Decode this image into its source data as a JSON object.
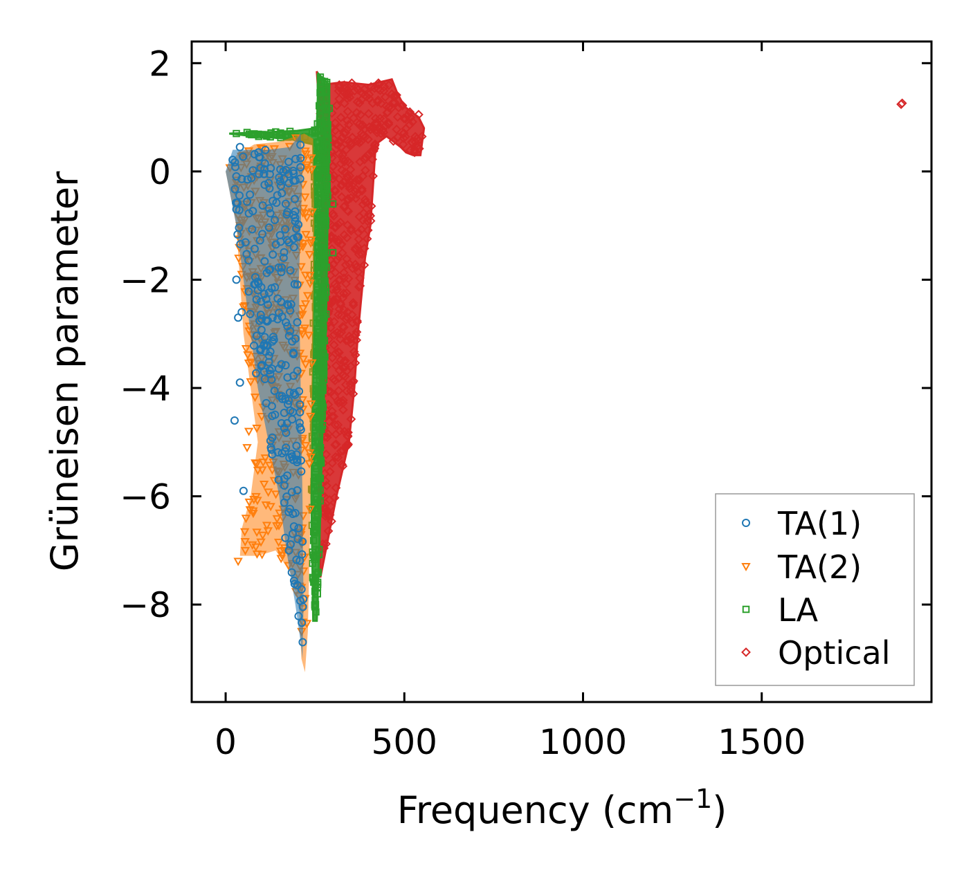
{
  "chart_data": {
    "type": "scatter",
    "title": "",
    "xlabel": "Frequency (cm",
    "xlabel_sup": "−1",
    "xlabel_end": ")",
    "ylabel": "Grüneisen parameter",
    "xlim": [
      -95,
      1975
    ],
    "ylim": [
      -9.8,
      2.4
    ],
    "xticks": [
      0,
      500,
      1000,
      1500
    ],
    "xtick_labels": [
      "0",
      "500",
      "1000",
      "1500"
    ],
    "yticks": [
      -8,
      -6,
      -4,
      -2,
      0,
      2
    ],
    "ytick_labels": [
      "−8",
      "−6",
      "−4",
      "−2",
      "0",
      "2"
    ],
    "grid": false,
    "legend_position": "bottom-right",
    "series": [
      {
        "name": "TA(1)",
        "marker": "circle",
        "color": "#1f77b4",
        "envelope": [
          [
            0,
            0.0
          ],
          [
            20,
            0.4
          ],
          [
            60,
            0.4
          ],
          [
            120,
            0.4
          ],
          [
            180,
            0.45
          ],
          [
            210,
            0.7
          ],
          [
            215,
            0.0
          ],
          [
            205,
            -2.0
          ],
          [
            210,
            -4.0
          ],
          [
            215,
            -6.0
          ],
          [
            218,
            -8.0
          ],
          [
            215,
            -9.0
          ],
          [
            210,
            -8.7
          ],
          [
            195,
            -8.0
          ],
          [
            170,
            -7.0
          ],
          [
            150,
            -6.0
          ],
          [
            120,
            -5.0
          ],
          [
            90,
            -4.0
          ],
          [
            70,
            -3.0
          ],
          [
            50,
            -2.0
          ],
          [
            30,
            -1.0
          ]
        ],
        "outliers": [
          [
            30,
            -2.0
          ],
          [
            35,
            -2.7
          ],
          [
            25,
            -4.6
          ],
          [
            50,
            -5.9
          ],
          [
            40,
            -3.9
          ],
          [
            45,
            -2.6
          ],
          [
            30,
            -0.7
          ],
          [
            40,
            0.45
          ]
        ]
      },
      {
        "name": "TA(2)",
        "marker": "triangle-down",
        "color": "#ff7f0e",
        "envelope": [
          [
            0,
            0.0
          ],
          [
            30,
            0.3
          ],
          [
            80,
            0.5
          ],
          [
            150,
            0.55
          ],
          [
            220,
            0.7
          ],
          [
            245,
            0.6
          ],
          [
            248,
            -1.0
          ],
          [
            245,
            -3.0
          ],
          [
            240,
            -5.0
          ],
          [
            235,
            -7.0
          ],
          [
            230,
            -8.5
          ],
          [
            222,
            -9.25
          ],
          [
            212,
            -9.0
          ],
          [
            205,
            -8.0
          ],
          [
            180,
            -7.4
          ],
          [
            140,
            -7.0
          ],
          [
            90,
            -7.1
          ],
          [
            40,
            -7.1
          ],
          [
            45,
            -6.6
          ],
          [
            70,
            -6.0
          ],
          [
            90,
            -5.0
          ],
          [
            70,
            -4.0
          ],
          [
            50,
            -3.0
          ],
          [
            30,
            -1.0
          ]
        ],
        "outliers": [
          [
            35,
            -7.2
          ],
          [
            55,
            -7.0
          ],
          [
            60,
            -5.1
          ],
          [
            50,
            -2.5
          ],
          [
            45,
            -1.9
          ],
          [
            40,
            -1.0
          ],
          [
            30,
            -0.6
          ],
          [
            65,
            -4.8
          ]
        ]
      },
      {
        "name": "LA",
        "marker": "square",
        "color": "#2ca02c",
        "envelope": [
          [
            10,
            0.7
          ],
          [
            100,
            0.72
          ],
          [
            200,
            0.75
          ],
          [
            255,
            0.8
          ],
          [
            260,
            1.8
          ],
          [
            290,
            1.6
          ],
          [
            290,
            0.5
          ],
          [
            285,
            -1.0
          ],
          [
            280,
            -3.0
          ],
          [
            270,
            -5.0
          ],
          [
            262,
            -7.0
          ],
          [
            255,
            -8.3
          ],
          [
            245,
            -8.3
          ],
          [
            240,
            -6.0
          ],
          [
            245,
            -3.0
          ],
          [
            248,
            -1.0
          ],
          [
            245,
            0.5
          ],
          [
            180,
            0.6
          ],
          [
            80,
            0.65
          ]
        ],
        "outliers": [
          [
            30,
            0.7
          ],
          [
            60,
            0.72
          ],
          [
            140,
            0.73
          ],
          [
            180,
            0.74
          ],
          [
            300,
            -1.5
          ],
          [
            300,
            -0.6
          ]
        ]
      },
      {
        "name": "Optical",
        "marker": "diamond",
        "color": "#d62728",
        "envelope": [
          [
            255,
            1.85
          ],
          [
            270,
            1.6
          ],
          [
            330,
            1.65
          ],
          [
            400,
            1.6
          ],
          [
            465,
            1.7
          ],
          [
            480,
            1.45
          ],
          [
            500,
            1.2
          ],
          [
            540,
            1.0
          ],
          [
            555,
            0.8
          ],
          [
            545,
            0.3
          ],
          [
            525,
            0.3
          ],
          [
            505,
            0.35
          ],
          [
            490,
            0.45
          ],
          [
            470,
            0.55
          ],
          [
            450,
            0.65
          ],
          [
            420,
            0.5
          ],
          [
            410,
            -0.5
          ],
          [
            405,
            -1.0
          ],
          [
            390,
            -1.6
          ],
          [
            370,
            -3.0
          ],
          [
            360,
            -4.0
          ],
          [
            345,
            -5.0
          ],
          [
            310,
            -6.0
          ],
          [
            280,
            -7.0
          ],
          [
            265,
            -7.5
          ],
          [
            260,
            -6.0
          ],
          [
            265,
            -3.0
          ],
          [
            270,
            -1.0
          ],
          [
            270,
            0.5
          ],
          [
            262,
            1.2
          ]
        ],
        "outliers": [
          [
            1890,
            1.24
          ],
          [
            1893,
            1.26
          ],
          [
            540,
            1.05
          ],
          [
            350,
            -3.6
          ],
          [
            320,
            -2.0
          ]
        ]
      }
    ]
  }
}
